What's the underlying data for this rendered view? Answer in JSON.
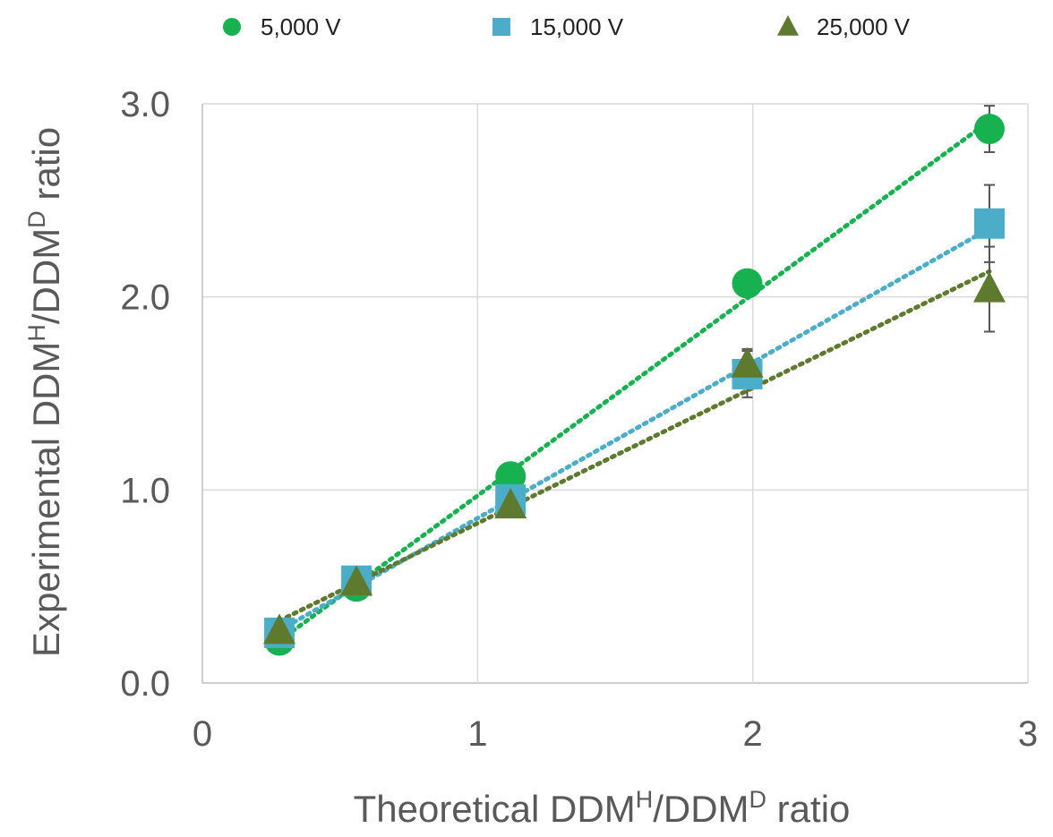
{
  "chart_data": {
    "type": "scatter",
    "xlabel": {
      "base1": "Theoretical DDM",
      "sup1": "H",
      "base2": "/DDM",
      "sup2": "D",
      "base3": " ratio"
    },
    "ylabel": {
      "base1": "Experimental DDM",
      "sup1": "H",
      "base2": "/DDM",
      "sup2": "D",
      "base3": " ratio"
    },
    "xlim": [
      0,
      3
    ],
    "ylim": [
      0,
      3
    ],
    "x_ticks": [
      "0",
      "1",
      "2",
      "3"
    ],
    "y_ticks": [
      "0.0",
      "1.0",
      "2.0",
      "3.0"
    ],
    "grid": true,
    "legend_position": "top",
    "trendlines": "linear, dotted",
    "series": [
      {
        "name": "5,000 V",
        "marker": "circle",
        "color": "#17b14f",
        "x": [
          0.28,
          0.56,
          1.12,
          1.98,
          2.86
        ],
        "y": [
          0.22,
          0.5,
          1.07,
          2.07,
          2.87
        ],
        "error": [
          0.02,
          0.02,
          0.03,
          0.04,
          0.12
        ]
      },
      {
        "name": "15,000 V",
        "marker": "square",
        "color": "#4cadc9",
        "x": [
          0.28,
          0.56,
          1.12,
          1.98,
          2.86
        ],
        "y": [
          0.26,
          0.53,
          0.95,
          1.6,
          2.38
        ],
        "error": [
          0.02,
          0.02,
          0.05,
          0.12,
          0.2
        ]
      },
      {
        "name": "25,000 V",
        "marker": "triangle",
        "color": "#5e7a2e",
        "x": [
          0.28,
          0.56,
          1.12,
          1.98,
          2.86
        ],
        "y": [
          0.27,
          0.52,
          0.92,
          1.65,
          2.04
        ],
        "error": [
          0.02,
          0.02,
          0.06,
          0.08,
          0.22
        ]
      }
    ]
  }
}
